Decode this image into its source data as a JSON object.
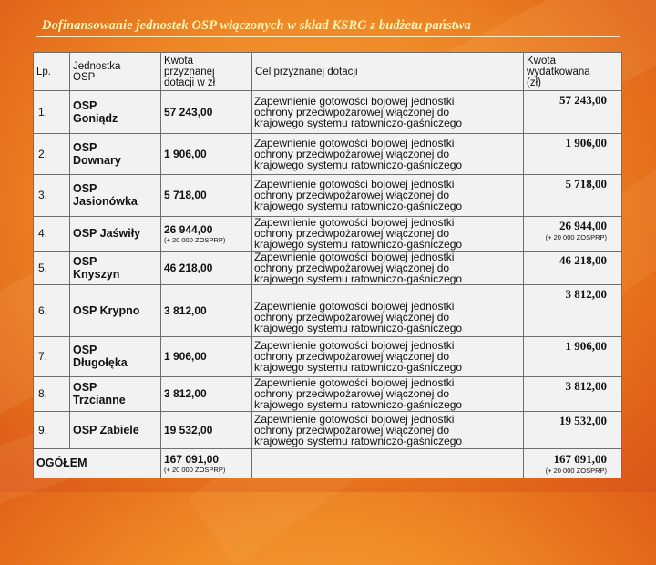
{
  "title": "Dofinansowanie jednostek OSP włączonych w skład KSRG z budżetu państwa",
  "headers": {
    "lp": "Lp.",
    "unit": "Jednostka\nOSP",
    "granted": "Kwota\nprzyznanej\ndotacji w zł",
    "purpose": "Cel przyznanej dotacji",
    "spent": "Kwota\nwydatkowana\n(zł)"
  },
  "purpose_lines": [
    "Zapewnienie gotowości bojowej jednostki",
    "ochrony przeciwpożarowej włączonej do",
    "krajowego systemu ratowniczo-gaśniczego"
  ],
  "rows": [
    {
      "lp": "1.",
      "unit": "OSP\nGoniądz",
      "granted": "57 243,00",
      "granted_note": "",
      "spent": "57 243,00",
      "spent_note": ""
    },
    {
      "lp": "2.",
      "unit": "OSP\nDownary",
      "granted": "1 906,00",
      "granted_note": "",
      "spent": "1 906,00",
      "spent_note": ""
    },
    {
      "lp": "3.",
      "unit": "OSP\nJasionówka",
      "granted": "5 718,00",
      "granted_note": "",
      "spent": "5 718,00",
      "spent_note": ""
    },
    {
      "lp": "4.",
      "unit": "OSP Jaświły",
      "granted": "26 944,00",
      "granted_note": "(+ 20 000 ZOSPRP)",
      "spent": "26 944,00",
      "spent_note": "(+ 20 000 ZOSPRP)"
    },
    {
      "lp": "5.",
      "unit": "OSP\nKnyszyn",
      "granted": "46 218,00",
      "granted_note": "",
      "spent": "46 218,00",
      "spent_note": ""
    },
    {
      "lp": "6.",
      "unit": "OSP Krypno",
      "granted": "3 812,00",
      "granted_note": "",
      "spent": "3 812,00",
      "spent_note": ""
    },
    {
      "lp": "7.",
      "unit": "OSP\nDługołęka",
      "granted": "1 906,00",
      "granted_note": "",
      "spent": "1 906,00",
      "spent_note": ""
    },
    {
      "lp": "8.",
      "unit": "OSP\nTrzcianne",
      "granted": "3 812,00",
      "granted_note": "",
      "spent": "3 812,00",
      "spent_note": ""
    },
    {
      "lp": "9.",
      "unit": "OSP Zabiele",
      "granted": "19 532,00",
      "granted_note": "",
      "spent": "19 532,00",
      "spent_note": ""
    }
  ],
  "total": {
    "label": "OGÓŁEM",
    "granted": "167 091,00",
    "granted_note": "(+ 20 000 ZOSPRP)",
    "spent": "167 091,00",
    "spent_note": "(+ 20 000 ZOSPRP)"
  },
  "colors": {
    "title": "#fff4b8",
    "background": "#ef8a27",
    "table": "#f2f2f2"
  }
}
